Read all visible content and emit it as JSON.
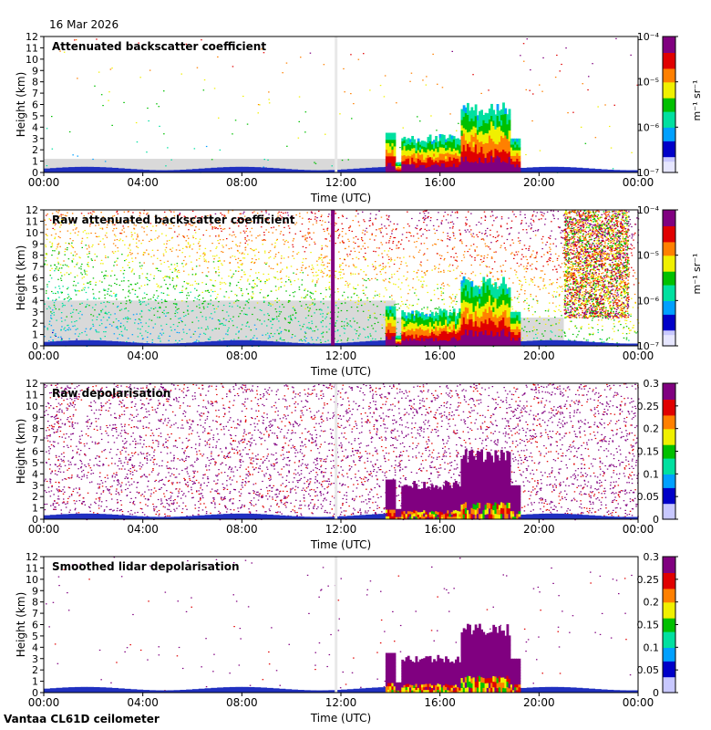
{
  "date_label": "16 Mar 2026",
  "instrument_label": "Vantaa CL61D ceilometer",
  "colors": {
    "background_gray": "#d9d9d9",
    "jet": [
      "#ffffff",
      "#c8c8ff",
      "#0000c8",
      "#00a0ff",
      "#00e0a0",
      "#00c000",
      "#f0f000",
      "#ff8000",
      "#e00000",
      "#800080"
    ]
  },
  "chart_data": [
    {
      "type": "heatmap",
      "title": "Attenuated backscatter coefficient",
      "xlabel": "Time (UTC)",
      "ylabel": "Height (km)",
      "x_ticks": [
        "00:00",
        "04:00",
        "08:00",
        "12:00",
        "16:00",
        "20:00",
        "00:00"
      ],
      "x_range_hours": [
        0,
        24
      ],
      "y_ticks": [
        0,
        1,
        2,
        3,
        4,
        5,
        6,
        7,
        8,
        9,
        10,
        11,
        12
      ],
      "ylim": [
        0,
        12
      ],
      "colorbar": {
        "scale": "log",
        "label": "m⁻¹ sr⁻¹",
        "ticks": [
          "10⁻⁴",
          "10⁻⁵",
          "10⁻⁶",
          "10⁻⁷"
        ],
        "range": [
          1e-07,
          0.0001
        ]
      },
      "noise_gray_top_km": 1.2,
      "noise_density": 0.02
    },
    {
      "type": "heatmap",
      "title": "Raw attenuated backscatter coefficient",
      "xlabel": "Time (UTC)",
      "ylabel": "Height (km)",
      "x_ticks": [
        "00:00",
        "04:00",
        "08:00",
        "12:00",
        "16:00",
        "20:00",
        "00:00"
      ],
      "x_range_hours": [
        0,
        24
      ],
      "y_ticks": [
        0,
        1,
        2,
        3,
        4,
        5,
        6,
        7,
        8,
        9,
        10,
        11,
        12
      ],
      "ylim": [
        0,
        12
      ],
      "colorbar": {
        "scale": "log",
        "label": "m⁻¹ sr⁻¹",
        "ticks": [
          "10⁻⁴",
          "10⁻⁵",
          "10⁻⁶",
          "10⁻⁷"
        ],
        "range": [
          1e-07,
          0.0001
        ]
      },
      "noise_gray_top_km": 4.0,
      "noise_density": 0.45
    },
    {
      "type": "heatmap",
      "title": "Raw depolarisation",
      "xlabel": "Time (UTC)",
      "ylabel": "Height (km)",
      "x_ticks": [
        "00:00",
        "04:00",
        "08:00",
        "12:00",
        "16:00",
        "20:00",
        "00:00"
      ],
      "x_range_hours": [
        0,
        24
      ],
      "y_ticks": [
        0,
        1,
        2,
        3,
        4,
        5,
        6,
        7,
        8,
        9,
        10,
        11,
        12
      ],
      "ylim": [
        0,
        12
      ],
      "colorbar": {
        "scale": "linear",
        "label": "",
        "ticks": [
          "0.3",
          "0.25",
          "0.2",
          "0.15",
          "0.1",
          "0.05",
          "0"
        ],
        "range": [
          0,
          0.3
        ]
      },
      "noise_density": 0.55
    },
    {
      "type": "heatmap",
      "title": "Smoothed lidar depolarisation",
      "xlabel": "Time (UTC)",
      "ylabel": "Height (km)",
      "x_ticks": [
        "00:00",
        "04:00",
        "08:00",
        "12:00",
        "16:00",
        "20:00",
        "00:00"
      ],
      "x_range_hours": [
        0,
        24
      ],
      "y_ticks": [
        0,
        1,
        2,
        3,
        4,
        5,
        6,
        7,
        8,
        9,
        10,
        11,
        12
      ],
      "ylim": [
        0,
        12
      ],
      "colorbar": {
        "scale": "linear",
        "label": "",
        "ticks": [
          "0.3",
          "0.25",
          "0.2",
          "0.15",
          "0.1",
          "0.05",
          "0"
        ],
        "range": [
          0,
          0.3
        ]
      },
      "noise_density": 0.02
    }
  ]
}
